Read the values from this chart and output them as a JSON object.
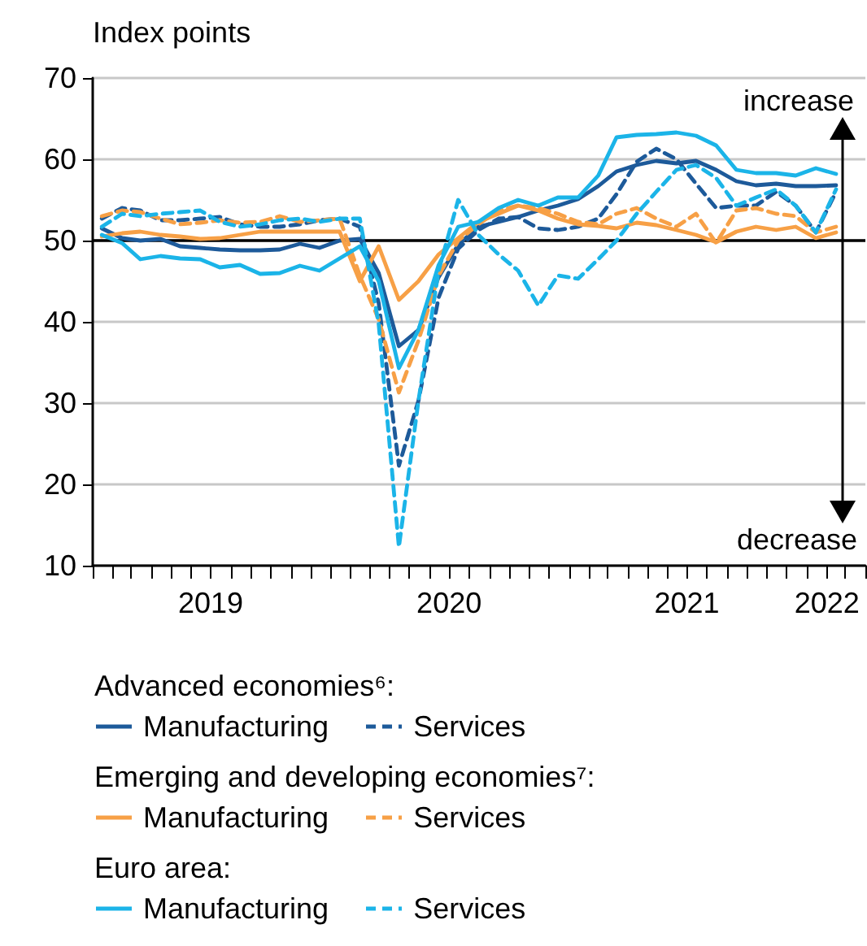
{
  "chart_data": {
    "type": "line",
    "ylabel": "Index points",
    "annotations": [
      "increase",
      "decrease",
      "Advanced economies⁶:",
      "Emerging and developing economies⁷:",
      "Euro area:"
    ],
    "x": [
      "2019-01-15",
      "2019-02-15",
      "2019-03-15",
      "2019-04-15",
      "2019-05-15",
      "2019-06-15",
      "2019-07-15",
      "2019-08-15",
      "2019-09-15",
      "2019-10-15",
      "2019-11-15",
      "2019-12-15",
      "2020-01-15",
      "2020-02-15",
      "2020-03-15",
      "2020-04-15",
      "2020-05-15",
      "2020-06-15",
      "2020-07-15",
      "2020-08-15",
      "2020-09-15",
      "2020-10-15",
      "2020-11-15",
      "2020-12-15",
      "2021-01-15",
      "2021-02-15",
      "2021-03-15",
      "2021-04-15",
      "2021-05-15",
      "2021-06-15",
      "2021-07-15",
      "2021-08-15",
      "2021-09-15",
      "2021-10-15",
      "2021-11-15",
      "2021-12-15",
      "2022-01-15",
      "2022-02-15"
    ],
    "series": [
      {
        "name": "Manufacturing",
        "color": "#1d5a9a",
        "line_style": "solid",
        "values": [
          51.5,
          50.3,
          50,
          50.2,
          49.3,
          49.1,
          48.9,
          48.8,
          48.8,
          48.9,
          49.6,
          49.1,
          50,
          50.2,
          46,
          37,
          39,
          45.5,
          49.5,
          51.7,
          52.3,
          52.9,
          53.7,
          54.3,
          55.1,
          56.7,
          58.5,
          59.3,
          59.8,
          59.5,
          59.8,
          58.7,
          57.3,
          56.8,
          57,
          56.7,
          56.7,
          56.8
        ]
      },
      {
        "name": "Services",
        "color": "#1d5a9a",
        "line_style": "dashed",
        "values": [
          52.7,
          54,
          53.7,
          52.5,
          52.5,
          52.7,
          52.9,
          52,
          51.7,
          51.7,
          52,
          52.5,
          52.7,
          51.7,
          42.3,
          22.3,
          30.3,
          43,
          49,
          51.3,
          52.7,
          52.9,
          51.5,
          51.3,
          51.7,
          52.7,
          55.7,
          59.7,
          61.3,
          60,
          57,
          54,
          54.3,
          54.3,
          56,
          54.3,
          51,
          56
        ]
      },
      {
        "name": "Manufacturing",
        "color": "#f7a046",
        "line_style": "solid",
        "values": [
          50.5,
          50.9,
          51.1,
          50.7,
          50.5,
          50.2,
          50.3,
          50.7,
          51.1,
          51.1,
          51.1,
          51.1,
          51.1,
          45,
          49.3,
          42.7,
          45,
          48.3,
          50.3,
          52.3,
          53.3,
          54.3,
          53.7,
          52.7,
          52,
          51.8,
          51.5,
          52.2,
          51.9,
          51.3,
          50.7,
          49.8,
          51.1,
          51.7,
          51.3,
          51.7,
          50.3,
          51
        ]
      },
      {
        "name": "Services",
        "color": "#f7a046",
        "line_style": "dashed",
        "values": [
          53,
          53.7,
          53.5,
          52.7,
          52,
          52.2,
          52.5,
          52.2,
          52.3,
          53,
          52.3,
          52.5,
          52.7,
          45.7,
          40.3,
          31.3,
          37.7,
          45.7,
          50,
          52,
          53.7,
          54.3,
          54,
          53.3,
          52.3,
          52,
          53.3,
          54,
          52.7,
          51.7,
          53.3,
          49.7,
          53.7,
          54,
          53.3,
          53,
          51,
          51.7
        ]
      },
      {
        "name": "Manufacturing",
        "color": "#1bb4e8",
        "line_style": "solid",
        "values": [
          50.7,
          49.7,
          47.7,
          48.1,
          47.8,
          47.7,
          46.7,
          47,
          45.9,
          46,
          46.9,
          46.3,
          47.8,
          49.3,
          45,
          34.3,
          39,
          47,
          51.7,
          52.3,
          54,
          55,
          54.3,
          55.3,
          55.3,
          58,
          62.7,
          63,
          63.1,
          63.3,
          62.9,
          61.7,
          58.7,
          58.3,
          58.3,
          58,
          58.9,
          58.2
        ]
      },
      {
        "name": "Services",
        "color": "#1bb4e8",
        "line_style": "dashed",
        "values": [
          51.7,
          53.3,
          53,
          53.3,
          53.5,
          53.7,
          52.3,
          51.7,
          52,
          52.5,
          52.7,
          52.3,
          52.7,
          52.7,
          39.7,
          12.3,
          30.3,
          46.3,
          55,
          50.7,
          48.3,
          46.3,
          42,
          45.7,
          45.3,
          47.7,
          50,
          53.3,
          56,
          58.7,
          59.3,
          57.7,
          54.3,
          55.3,
          56.3,
          54.3,
          51,
          56.3
        ]
      }
    ],
    "xlim": [
      "2019-01",
      "2022-04"
    ],
    "xticks": [
      {
        "value": "2019-01",
        "label": null
      },
      {
        "value": "2019-02",
        "label": null
      },
      {
        "value": "2019-03",
        "label": null
      },
      {
        "value": "2019-04",
        "label": null
      },
      {
        "value": "2019-05",
        "label": null
      },
      {
        "value": "2019-06",
        "label": null
      },
      {
        "value": "2019-07",
        "label": "2019"
      },
      {
        "value": "2019-08",
        "label": null
      },
      {
        "value": "2019-09",
        "label": null
      },
      {
        "value": "2019-10",
        "label": null
      },
      {
        "value": "2019-11",
        "label": null
      },
      {
        "value": "2019-12",
        "label": null
      },
      {
        "value": "2020-01",
        "label": null
      },
      {
        "value": "2020-02",
        "label": null
      },
      {
        "value": "2020-03",
        "label": null
      },
      {
        "value": "2020-04",
        "label": null
      },
      {
        "value": "2020-05",
        "label": null
      },
      {
        "value": "2020-06",
        "label": null
      },
      {
        "value": "2020-07",
        "label": "2020"
      },
      {
        "value": "2020-08",
        "label": null
      },
      {
        "value": "2020-09",
        "label": null
      },
      {
        "value": "2020-10",
        "label": null
      },
      {
        "value": "2020-11",
        "label": null
      },
      {
        "value": "2020-12",
        "label": null
      },
      {
        "value": "2021-01",
        "label": null
      },
      {
        "value": "2021-02",
        "label": null
      },
      {
        "value": "2021-03",
        "label": null
      },
      {
        "value": "2021-04",
        "label": null
      },
      {
        "value": "2021-05",
        "label": null
      },
      {
        "value": "2021-06",
        "label": null
      },
      {
        "value": "2021-07",
        "label": "2021"
      },
      {
        "value": "2021-08",
        "label": null
      },
      {
        "value": "2021-09",
        "label": null
      },
      {
        "value": "2021-10",
        "label": null
      },
      {
        "value": "2021-11",
        "label": null
      },
      {
        "value": "2021-12",
        "label": null
      },
      {
        "value": "2022-01",
        "label": null
      },
      {
        "value": "2022-02",
        "label": "2022"
      },
      {
        "value": "2022-03",
        "label": null
      },
      {
        "value": "2022-04",
        "label": null
      }
    ],
    "ylim": [
      10,
      70
    ],
    "yticks": [
      10,
      20,
      30,
      40,
      50,
      60,
      70
    ],
    "ref_lines": [
      {
        "axis": "y",
        "value": 50,
        "color": "#000000"
      }
    ],
    "grid": "y",
    "legend": "bottom",
    "marker": "none"
  }
}
